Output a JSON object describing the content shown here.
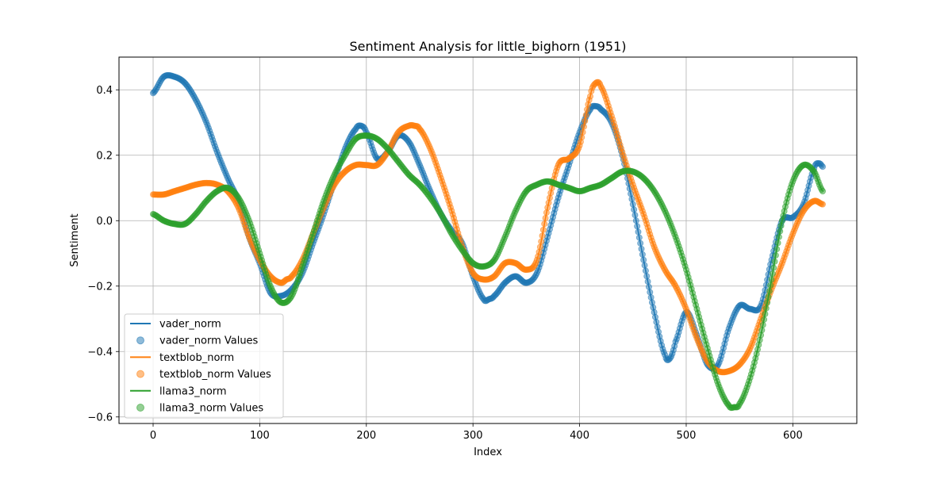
{
  "chart_data": {
    "type": "line",
    "title": "Sentiment Analysis for little_bighorn (1951)",
    "xlabel": "Index",
    "ylabel": "Sentiment",
    "xlim": [
      -32,
      660
    ],
    "ylim": [
      -0.62,
      0.5
    ],
    "xticks": [
      0,
      100,
      200,
      300,
      400,
      500,
      600
    ],
    "yticks": [
      0.4,
      0.2,
      0.0,
      -0.2,
      -0.4,
      -0.6
    ],
    "ytick_labels": [
      "0.4",
      "0.2",
      "0.0",
      "−0.2",
      "−0.4",
      "−0.6"
    ],
    "grid": true,
    "legend_position": "lower-left",
    "n_points": 629,
    "legend_entries": [
      "vader_norm",
      "vader_norm Values",
      "textblob_norm",
      "textblob_norm Values",
      "llama3_norm",
      "llama3_norm Values"
    ],
    "series": [
      {
        "name": "vader_norm",
        "color": "#1f77b4",
        "x": [
          0,
          10,
          20,
          30,
          40,
          50,
          60,
          70,
          80,
          90,
          100,
          110,
          120,
          130,
          140,
          150,
          160,
          170,
          180,
          190,
          195,
          200,
          210,
          220,
          230,
          240,
          250,
          260,
          270,
          280,
          290,
          300,
          310,
          315,
          320,
          330,
          340,
          350,
          360,
          370,
          380,
          390,
          400,
          410,
          415,
          420,
          430,
          440,
          450,
          460,
          470,
          480,
          485,
          490,
          500,
          510,
          520,
          530,
          540,
          550,
          560,
          570,
          580,
          590,
          600,
          610,
          620,
          625,
          628
        ],
        "y": [
          0.39,
          0.44,
          0.44,
          0.42,
          0.37,
          0.3,
          0.21,
          0.13,
          0.06,
          -0.05,
          -0.13,
          -0.22,
          -0.23,
          -0.21,
          -0.16,
          -0.07,
          0.02,
          0.12,
          0.22,
          0.28,
          0.29,
          0.27,
          0.19,
          0.21,
          0.26,
          0.24,
          0.17,
          0.09,
          0.02,
          -0.03,
          -0.07,
          -0.17,
          -0.24,
          -0.24,
          -0.23,
          -0.19,
          -0.17,
          -0.19,
          -0.16,
          -0.05,
          0.07,
          0.17,
          0.27,
          0.34,
          0.35,
          0.34,
          0.3,
          0.2,
          0.05,
          -0.12,
          -0.28,
          -0.41,
          -0.42,
          -0.37,
          -0.28,
          -0.35,
          -0.44,
          -0.44,
          -0.33,
          -0.26,
          -0.27,
          -0.26,
          -0.12,
          0.0,
          0.01,
          0.05,
          0.16,
          0.175,
          0.165
        ]
      },
      {
        "name": "textblob_norm",
        "color": "#ff7f0e",
        "x": [
          0,
          10,
          20,
          30,
          40,
          50,
          60,
          70,
          80,
          90,
          100,
          110,
          120,
          125,
          130,
          140,
          150,
          160,
          170,
          180,
          190,
          200,
          210,
          220,
          230,
          240,
          245,
          250,
          260,
          270,
          280,
          290,
          300,
          310,
          320,
          330,
          340,
          350,
          360,
          370,
          380,
          390,
          400,
          410,
          415,
          420,
          430,
          440,
          450,
          460,
          470,
          480,
          490,
          500,
          510,
          520,
          530,
          540,
          550,
          560,
          570,
          580,
          590,
          600,
          610,
          620,
          628
        ],
        "y": [
          0.08,
          0.08,
          0.09,
          0.1,
          0.11,
          0.115,
          0.11,
          0.09,
          0.04,
          -0.05,
          -0.12,
          -0.17,
          -0.19,
          -0.18,
          -0.17,
          -0.12,
          -0.04,
          0.04,
          0.11,
          0.15,
          0.17,
          0.17,
          0.17,
          0.21,
          0.27,
          0.29,
          0.29,
          0.28,
          0.22,
          0.13,
          0.03,
          -0.08,
          -0.16,
          -0.18,
          -0.17,
          -0.13,
          -0.13,
          -0.15,
          -0.12,
          0.04,
          0.17,
          0.19,
          0.23,
          0.38,
          0.42,
          0.41,
          0.32,
          0.21,
          0.11,
          0.02,
          -0.08,
          -0.15,
          -0.2,
          -0.27,
          -0.36,
          -0.43,
          -0.46,
          -0.46,
          -0.44,
          -0.39,
          -0.3,
          -0.21,
          -0.13,
          -0.04,
          0.03,
          0.06,
          0.05
        ]
      },
      {
        "name": "llama3_norm",
        "color": "#2ca02c",
        "x": [
          0,
          10,
          20,
          30,
          40,
          50,
          60,
          70,
          80,
          90,
          100,
          110,
          120,
          130,
          140,
          150,
          160,
          170,
          180,
          190,
          200,
          210,
          220,
          230,
          240,
          250,
          260,
          270,
          280,
          290,
          300,
          310,
          320,
          330,
          340,
          350,
          360,
          370,
          380,
          390,
          400,
          410,
          420,
          430,
          440,
          450,
          460,
          470,
          480,
          490,
          500,
          510,
          520,
          530,
          540,
          545,
          550,
          560,
          570,
          580,
          590,
          600,
          610,
          620,
          628
        ],
        "y": [
          0.02,
          0.0,
          -0.01,
          -0.01,
          0.02,
          0.06,
          0.09,
          0.1,
          0.07,
          0.0,
          -0.1,
          -0.2,
          -0.25,
          -0.23,
          -0.14,
          -0.04,
          0.06,
          0.14,
          0.2,
          0.25,
          0.26,
          0.25,
          0.22,
          0.18,
          0.14,
          0.11,
          0.07,
          0.02,
          -0.04,
          -0.09,
          -0.13,
          -0.14,
          -0.12,
          -0.05,
          0.03,
          0.09,
          0.11,
          0.12,
          0.11,
          0.1,
          0.09,
          0.1,
          0.11,
          0.13,
          0.15,
          0.15,
          0.13,
          0.09,
          0.03,
          -0.05,
          -0.15,
          -0.27,
          -0.39,
          -0.5,
          -0.565,
          -0.57,
          -0.56,
          -0.48,
          -0.35,
          -0.18,
          0.0,
          0.12,
          0.17,
          0.15,
          0.09
        ]
      }
    ]
  }
}
